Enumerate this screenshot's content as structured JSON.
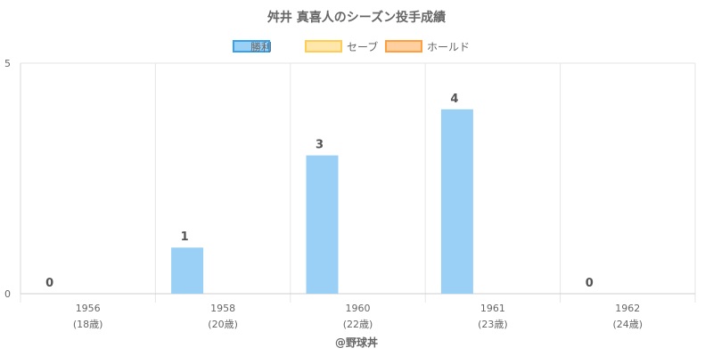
{
  "chart_data": {
    "type": "bar",
    "title": "舛井 真喜人のシーズン投手成績",
    "categories": [
      "1956",
      "1958",
      "1960",
      "1961",
      "1962"
    ],
    "category_sublabels": [
      "(18歳)",
      "(20歳)",
      "(22歳)",
      "(23歳)",
      "(24歳)"
    ],
    "series": [
      {
        "name": "勝利",
        "values": [
          0,
          1,
          3,
          4,
          0
        ],
        "color": "#9ad0f5",
        "border_color": "#36a2eb"
      },
      {
        "name": "セーブ",
        "values": [
          0,
          0,
          0,
          0,
          0
        ],
        "color": "#ffe6aa",
        "border_color": "#ffcd56"
      },
      {
        "name": "ホールド",
        "values": [
          0,
          0,
          0,
          0,
          0
        ],
        "color": "#ffcf9f",
        "border_color": "#ff9f40"
      }
    ],
    "data_labels": [
      "0",
      "1",
      "3",
      "4",
      "0"
    ],
    "ylim": [
      0,
      5
    ],
    "yticks": [
      "0",
      "5"
    ],
    "xlabel": "",
    "ylabel": "",
    "grid": true,
    "legend_position": "top"
  },
  "footer": {
    "credit": "@野球丼"
  }
}
